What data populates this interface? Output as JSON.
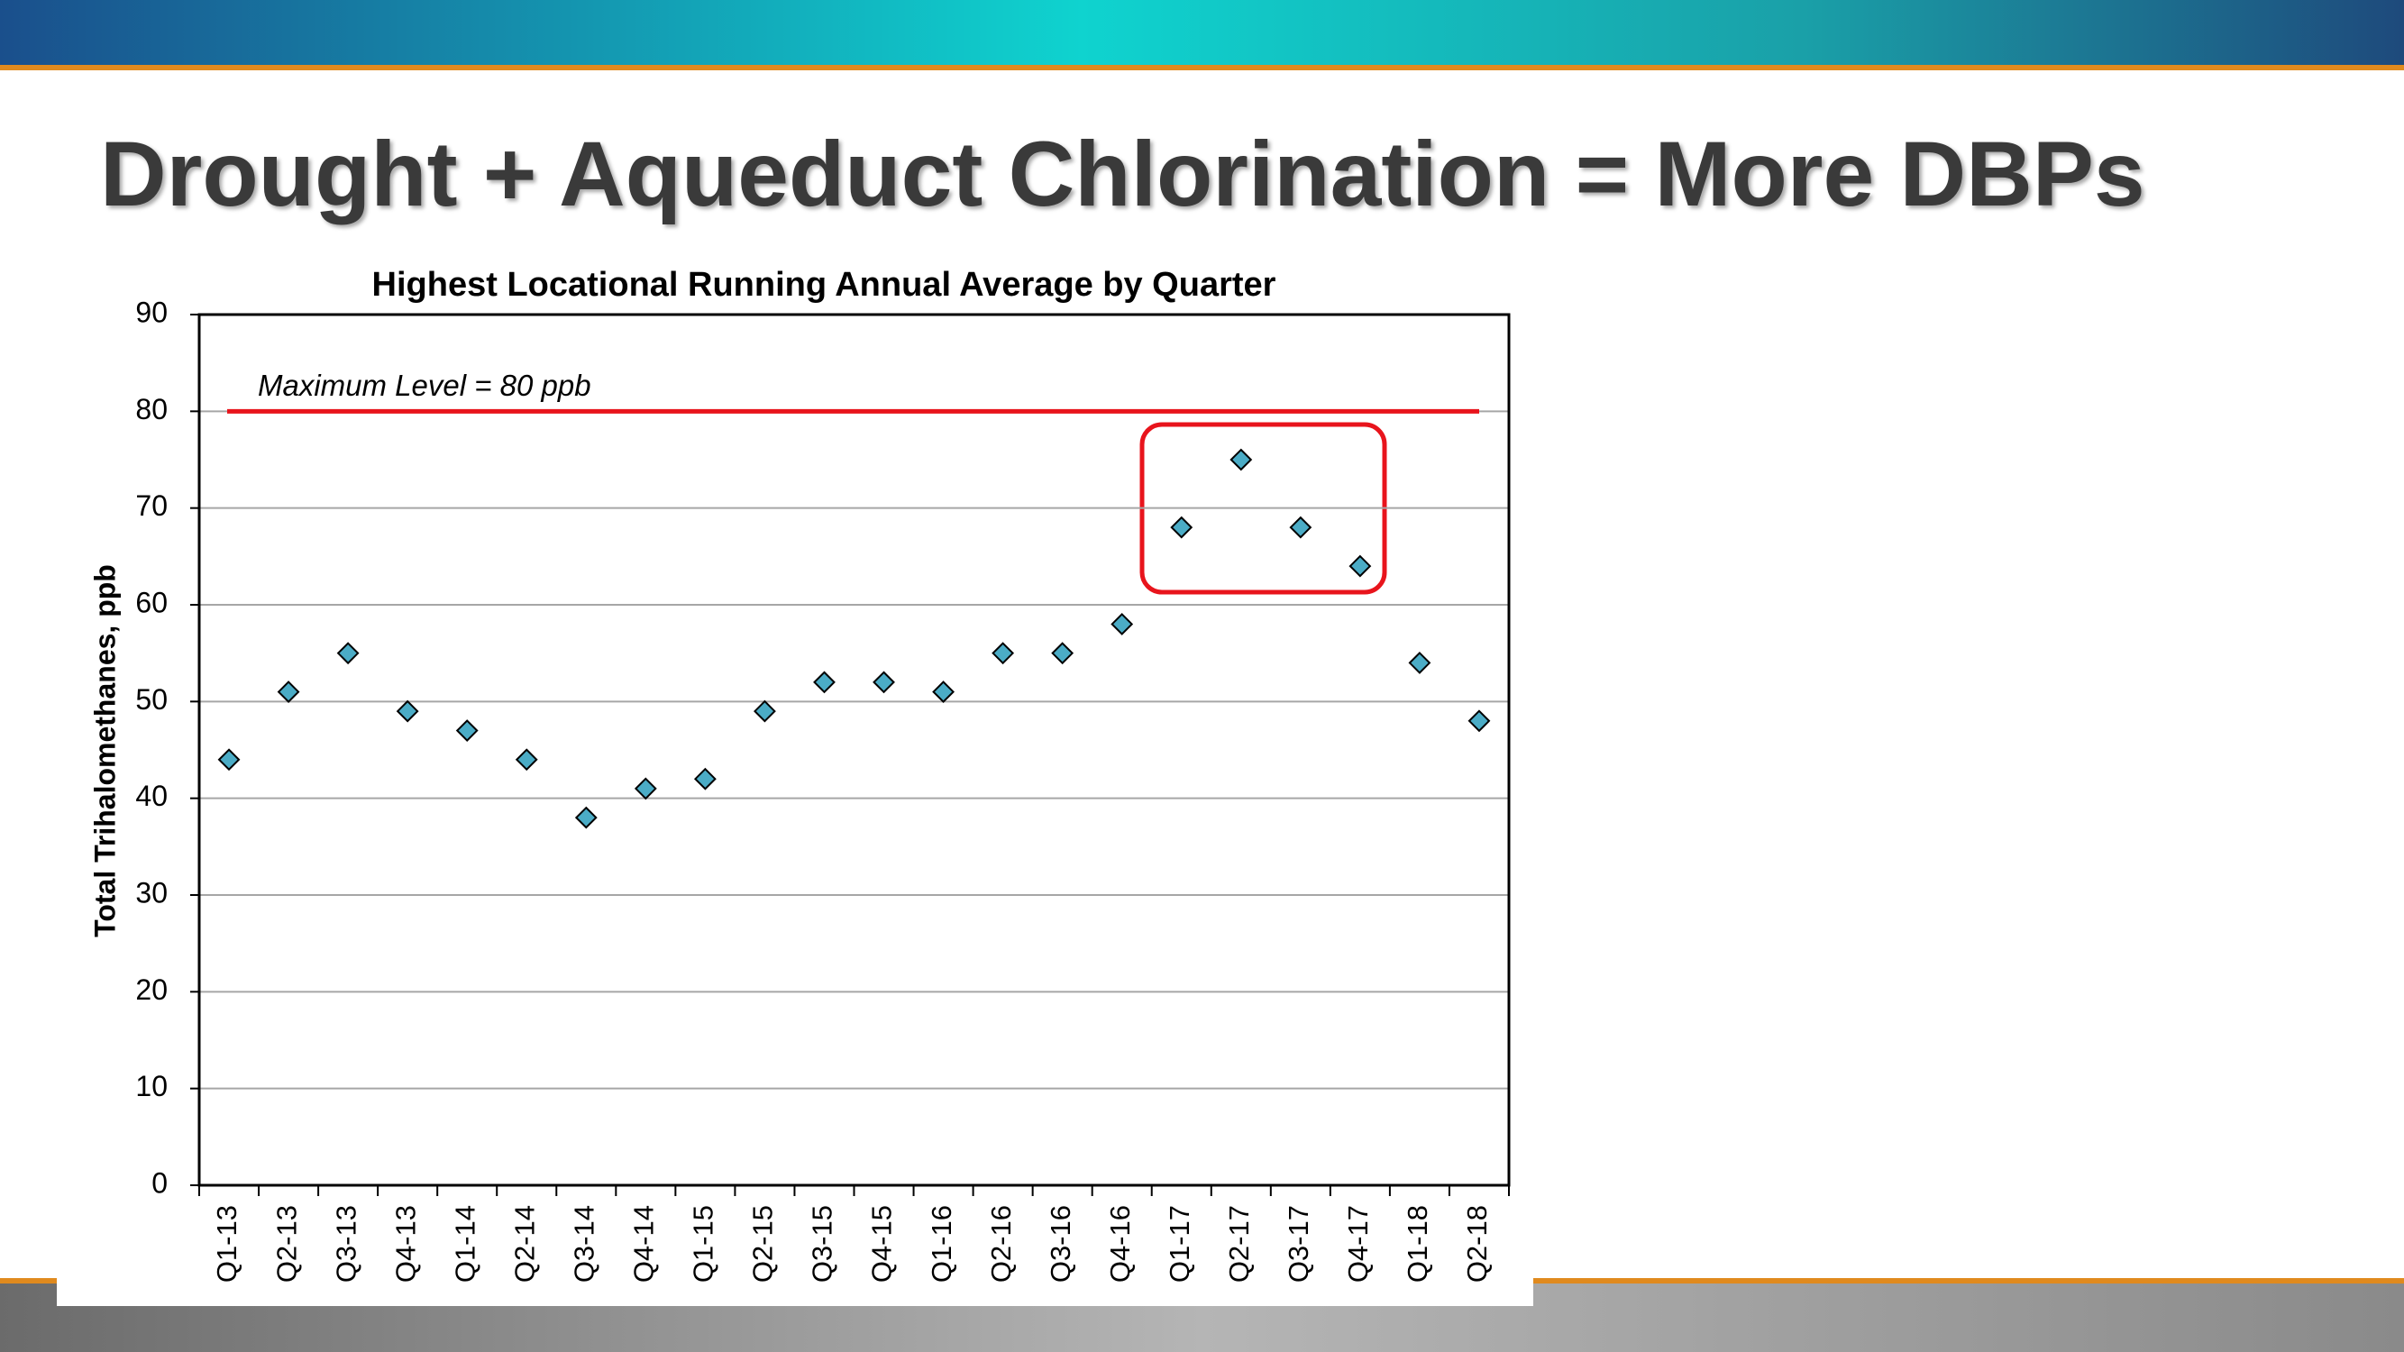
{
  "slide_title": "Drought + Aqueduct Chlorination = More DBPs",
  "chart_data": {
    "type": "scatter",
    "title": "Highest Locational Running Annual Average by Quarter",
    "y_label": "Total Trihalomethanes, ppb",
    "categories": [
      "Q1-13",
      "Q2-13",
      "Q3-13",
      "Q4-13",
      "Q1-14",
      "Q2-14",
      "Q3-14",
      "Q4-14",
      "Q1-15",
      "Q2-15",
      "Q3-15",
      "Q4-15",
      "Q1-16",
      "Q2-16",
      "Q3-16",
      "Q4-16",
      "Q1-17",
      "Q2-17",
      "Q3-17",
      "Q4-17",
      "Q1-18",
      "Q2-18"
    ],
    "values": [
      44,
      51,
      55,
      49,
      47,
      44,
      38,
      41,
      42,
      49,
      52,
      52,
      51,
      55,
      55,
      58,
      68,
      75,
      68,
      64,
      54,
      48
    ],
    "color": "#4bacc6",
    "ylim": [
      0,
      90
    ],
    "yticks": [
      0,
      10,
      20,
      30,
      40,
      50,
      60,
      70,
      80,
      90
    ],
    "grid": true,
    "reference_line": {
      "value": 80,
      "label": "Maximum Level = 80 ppb",
      "color": "#e8141c"
    }
  }
}
